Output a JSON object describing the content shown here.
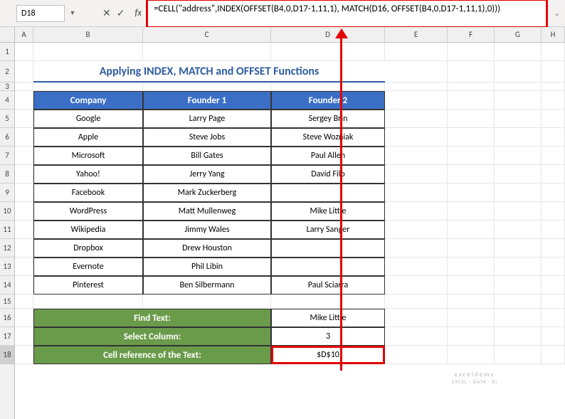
{
  "name_box": "D18",
  "formula_bar": "=CELL(\"address\",INDEX(OFFSET(B4,0,D17-1,11,1), MATCH(D16, OFFSET(B4,0,D17-1,11,1),0)))",
  "columns": [
    "A",
    "B",
    "C",
    "D",
    "E",
    "F",
    "G",
    "H"
  ],
  "row_numbers": [
    1,
    2,
    3,
    4,
    5,
    6,
    7,
    8,
    9,
    10,
    11,
    12,
    13,
    14,
    15,
    16,
    17,
    18
  ],
  "title": "Applying INDEX, MATCH and OFFSET Functions",
  "headers": [
    "Company",
    "Founder 1",
    "Founder 2"
  ],
  "data": [
    [
      "Google",
      "Larry Page",
      "Sergey Brin"
    ],
    [
      "Apple",
      "Steve Jobs",
      "Steve Wozniak"
    ],
    [
      "Microsoft",
      "Bill Gates",
      "Paul Allen"
    ],
    [
      "Yahoo!",
      "Jerry Yang",
      "David Filo"
    ],
    [
      "Facebook",
      "Mark Zuckerberg",
      ""
    ],
    [
      "WordPress",
      "Matt Mullenweg",
      "Mike Little"
    ],
    [
      "Wikipedia",
      "Jimmy Wales",
      "Larry Sanger"
    ],
    [
      "Dropbox",
      "Drew Houston",
      ""
    ],
    [
      "Evernote",
      "Phil Libin",
      ""
    ],
    [
      "Pinterest",
      "Ben Silbermann",
      "Paul Sciarra"
    ]
  ],
  "find_text_label": "Find Text:",
  "find_text_value": "Mike Little",
  "select_column_label": "Select Column:",
  "select_column_value": "3",
  "cell_ref_label": "Cell reference of the Text:",
  "cell_ref_value": "$D$10",
  "watermark_line1": "exceldemy",
  "watermark_line2": "EXCEL · DATA · BI",
  "colors": {
    "header_bg": "#3b6fc6",
    "label_bg": "#6a9b4a",
    "title_color": "#2e5c9e",
    "highlight": "#e00000"
  }
}
